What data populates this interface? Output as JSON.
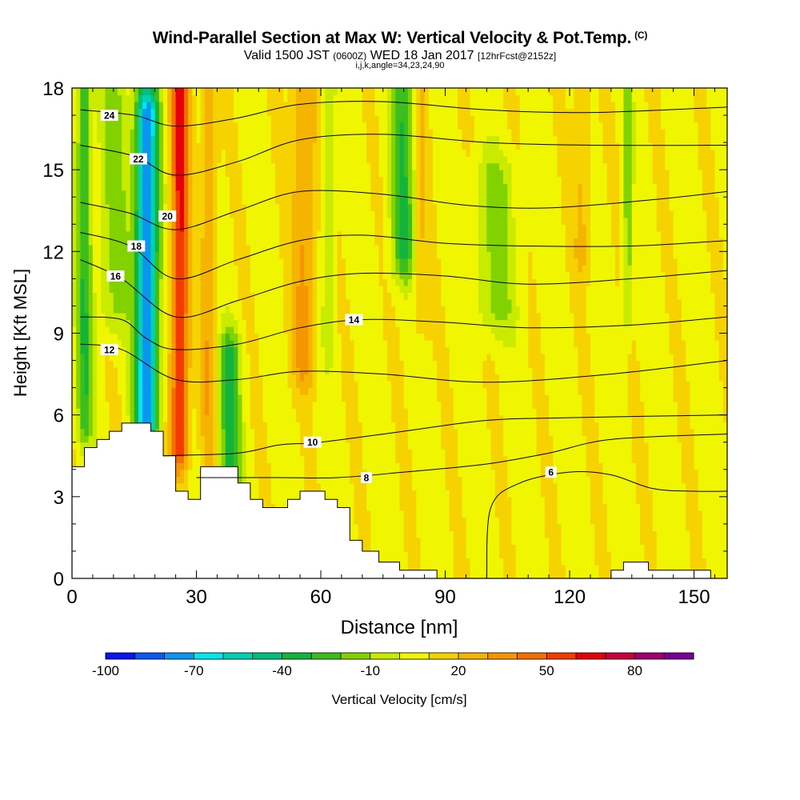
{
  "title": "Wind-Parallel Section at Max W: Vertical Velocity & Pot.Temp.",
  "copyright": "(C)",
  "subtitle": {
    "valid": "Valid 1500 JST",
    "utc": "(0600Z)",
    "date": "WED 18 Jan 2017",
    "forecast": "[12hrFcst@2152z]"
  },
  "indices": "i,j,k,angle=34,23,24,90",
  "chart_data": {
    "type": "heatmap",
    "xlabel": "Distance [nm]",
    "ylabel": "Height [Kft MSL]",
    "xlim": [
      0,
      158
    ],
    "ylim": [
      0,
      18
    ],
    "x_ticks": [
      "0",
      "30",
      "60",
      "90",
      "120",
      "150"
    ],
    "x_tick_values": [
      0,
      30,
      60,
      90,
      120,
      150
    ],
    "y_ticks": [
      "0",
      "3",
      "6",
      "9",
      "12",
      "15",
      "18"
    ],
    "y_tick_values": [
      0,
      3,
      6,
      9,
      12,
      15,
      18
    ],
    "grid": false,
    "colorbar": {
      "label": "Vertical Velocity [cm/s]",
      "range": [
        -100,
        100
      ],
      "step": 10,
      "tick_labels": [
        "-100",
        "-70",
        "-40",
        "-10",
        "20",
        "50",
        "80"
      ],
      "tick_values": [
        -100,
        -70,
        -40,
        -10,
        20,
        50,
        80
      ],
      "colors": [
        "#0a14f0",
        "#0a5af0",
        "#0a96f0",
        "#00e6f0",
        "#00d2b4",
        "#00c080",
        "#14b43c",
        "#3cbe1e",
        "#82d200",
        "#c8eb00",
        "#f0f500",
        "#f5d200",
        "#f5b400",
        "#f59600",
        "#f56e00",
        "#f53c00",
        "#e6000a",
        "#c8003c",
        "#a0006e",
        "#780096"
      ]
    },
    "terrain": [
      [
        0,
        4.1
      ],
      [
        3,
        4.1
      ],
      [
        3,
        4.8
      ],
      [
        6,
        4.8
      ],
      [
        6,
        5.1
      ],
      [
        9,
        5.1
      ],
      [
        9,
        5.4
      ],
      [
        12,
        5.4
      ],
      [
        12,
        5.7
      ],
      [
        19,
        5.7
      ],
      [
        19,
        5.4
      ],
      [
        22,
        5.4
      ],
      [
        22,
        4.5
      ],
      [
        25,
        4.5
      ],
      [
        25,
        3.2
      ],
      [
        28,
        3.2
      ],
      [
        28,
        2.9
      ],
      [
        31,
        2.9
      ],
      [
        31,
        4.1
      ],
      [
        40,
        4.1
      ],
      [
        40,
        3.5
      ],
      [
        43,
        3.5
      ],
      [
        43,
        2.9
      ],
      [
        46,
        2.9
      ],
      [
        46,
        2.6
      ],
      [
        52,
        2.6
      ],
      [
        52,
        2.9
      ],
      [
        55,
        2.9
      ],
      [
        55,
        3.2
      ],
      [
        61,
        3.2
      ],
      [
        61,
        2.9
      ],
      [
        64,
        2.9
      ],
      [
        64,
        2.6
      ],
      [
        67,
        2.6
      ],
      [
        67,
        1.4
      ],
      [
        70,
        1.4
      ],
      [
        70,
        1.0
      ],
      [
        74,
        1.0
      ],
      [
        74,
        0.6
      ],
      [
        79,
        0.6
      ],
      [
        79,
        0.3
      ],
      [
        88,
        0.3
      ],
      [
        88,
        0.0
      ],
      [
        130,
        0.0
      ],
      [
        130,
        0.3
      ],
      [
        133,
        0.3
      ],
      [
        133,
        0.6
      ],
      [
        139,
        0.6
      ],
      [
        139,
        0.3
      ],
      [
        154,
        0.3
      ],
      [
        154,
        0.0
      ],
      [
        158,
        0.0
      ]
    ],
    "velocity_features": [
      {
        "x": 3,
        "halfwidth": 1.8,
        "y0": 6,
        "y1": 18,
        "value": -35
      },
      {
        "x": 10,
        "halfwidth": 3.5,
        "y0": 10,
        "y1": 18,
        "value": -20
      },
      {
        "x": 18,
        "halfwidth": 2.8,
        "y0": 6,
        "y1": 17,
        "value": -85
      },
      {
        "x": 26,
        "halfwidth": 2.2,
        "y0": 5,
        "y1": 18,
        "value": 55
      },
      {
        "x": 33,
        "halfwidth": 2.0,
        "y0": 5,
        "y1": 18,
        "value": 20
      },
      {
        "x": 38,
        "halfwidth": 2.5,
        "y0": 3.5,
        "y1": 8,
        "value": -40
      },
      {
        "x": 56,
        "halfwidth": 3.0,
        "y0": 8,
        "y1": 18,
        "value": 25
      },
      {
        "x": 62,
        "halfwidth": 1.5,
        "y0": 9,
        "y1": 18,
        "value": -15
      },
      {
        "x": 80,
        "halfwidth": 3.0,
        "y0": 12,
        "y1": 18,
        "value": -35
      },
      {
        "x": 84,
        "halfwidth": 2.0,
        "y0": 10,
        "y1": 18,
        "value": 15
      },
      {
        "x": 102,
        "halfwidth": 5.0,
        "y0": 10,
        "y1": 14.5,
        "value": -20
      },
      {
        "x": 123,
        "halfwidth": 2.0,
        "y0": 12,
        "y1": 18,
        "value": 15
      },
      {
        "x": 134,
        "halfwidth": 1.0,
        "y0": 10,
        "y1": 18,
        "value": -25
      }
    ],
    "theta_contours": [
      {
        "label": "6",
        "points": [
          [
            100,
            0
          ],
          [
            101,
            2.6
          ],
          [
            108,
            3.5
          ],
          [
            120,
            3.9
          ],
          [
            130,
            3.8
          ],
          [
            140,
            3.3
          ],
          [
            150,
            3.2
          ],
          [
            158,
            3.2
          ]
        ],
        "label_at": [
          115.5,
          3.9
        ]
      },
      {
        "label": "8",
        "points": [
          [
            30,
            3.7
          ],
          [
            50,
            3.7
          ],
          [
            64,
            3.7
          ],
          [
            80,
            3.9
          ],
          [
            100,
            4.2
          ],
          [
            115,
            4.6
          ],
          [
            130,
            5.1
          ],
          [
            158,
            5.3
          ]
        ],
        "label_at": [
          71,
          3.7
        ]
      },
      {
        "label": "10",
        "points": [
          [
            22,
            4.5
          ],
          [
            40,
            4.6
          ],
          [
            50,
            4.9
          ],
          [
            60,
            5.0
          ],
          [
            80,
            5.4
          ],
          [
            100,
            5.8
          ],
          [
            120,
            5.9
          ],
          [
            158,
            6.0
          ]
        ],
        "label_at": [
          58,
          5.0
        ]
      },
      {
        "label": "12",
        "points": [
          [
            2,
            8.6
          ],
          [
            12,
            8.4
          ],
          [
            25,
            7.3
          ],
          [
            40,
            7.3
          ],
          [
            55,
            7.6
          ],
          [
            75,
            7.5
          ],
          [
            100,
            7.2
          ],
          [
            130,
            7.5
          ],
          [
            158,
            8.0
          ]
        ],
        "label_at": [
          9,
          8.4
        ]
      },
      {
        "label": "14",
        "points": [
          [
            2,
            9.6
          ],
          [
            12,
            9.5
          ],
          [
            18,
            8.8
          ],
          [
            25,
            8.4
          ],
          [
            40,
            8.6
          ],
          [
            55,
            9.2
          ],
          [
            70,
            9.5
          ],
          [
            90,
            9.4
          ],
          [
            110,
            9.2
          ],
          [
            135,
            9.3
          ],
          [
            158,
            9.6
          ]
        ],
        "label_at": [
          68,
          9.5
        ]
      },
      {
        "label": "16",
        "points": [
          [
            2,
            11.7
          ],
          [
            12,
            11.0
          ],
          [
            25,
            9.6
          ],
          [
            40,
            10.2
          ],
          [
            55,
            10.9
          ],
          [
            70,
            11.2
          ],
          [
            90,
            11.1
          ],
          [
            110,
            10.8
          ],
          [
            135,
            11.0
          ],
          [
            158,
            11.3
          ]
        ],
        "label_at": [
          10.5,
          11.1
        ]
      },
      {
        "label": "18",
        "points": [
          [
            2,
            12.7
          ],
          [
            14,
            12.2
          ],
          [
            25,
            11.0
          ],
          [
            40,
            11.7
          ],
          [
            55,
            12.4
          ],
          [
            70,
            12.6
          ],
          [
            90,
            12.3
          ],
          [
            110,
            12.2
          ],
          [
            135,
            12.2
          ],
          [
            158,
            12.4
          ]
        ],
        "label_at": [
          15.5,
          12.2
        ]
      },
      {
        "label": "20",
        "points": [
          [
            2,
            13.8
          ],
          [
            14,
            13.4
          ],
          [
            25,
            12.8
          ],
          [
            40,
            13.5
          ],
          [
            55,
            14.2
          ],
          [
            75,
            14.1
          ],
          [
            95,
            13.7
          ],
          [
            115,
            13.6
          ],
          [
            140,
            13.9
          ],
          [
            158,
            14.2
          ]
        ],
        "label_at": [
          23,
          13.3
        ]
      },
      {
        "label": "22",
        "points": [
          [
            2,
            15.9
          ],
          [
            15,
            15.5
          ],
          [
            25,
            14.8
          ],
          [
            40,
            15.3
          ],
          [
            55,
            16.1
          ],
          [
            75,
            16.3
          ],
          [
            100,
            16.0
          ],
          [
            125,
            15.9
          ],
          [
            158,
            15.9
          ]
        ],
        "label_at": [
          16,
          15.4
        ]
      },
      {
        "label": "24",
        "points": [
          [
            2,
            17.2
          ],
          [
            15,
            17.0
          ],
          [
            25,
            16.6
          ],
          [
            40,
            16.9
          ],
          [
            55,
            17.4
          ],
          [
            75,
            17.5
          ],
          [
            100,
            17.2
          ],
          [
            125,
            17.1
          ],
          [
            158,
            17.3
          ]
        ],
        "label_at": [
          9,
          17.0
        ]
      }
    ]
  }
}
